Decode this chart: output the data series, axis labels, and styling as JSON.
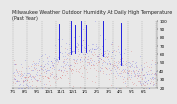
{
  "title": "Milwaukee Weather Outdoor Humidity At Daily High Temperature (Past Year)",
  "title_fontsize": 3.5,
  "title_color": "#222222",
  "bg_color": "#e8e8e8",
  "plot_bg_color": "#e8e8e8",
  "grid_color": "#888888",
  "ylim": [
    20,
    100
  ],
  "yticks": [
    20,
    30,
    40,
    50,
    60,
    70,
    80,
    90,
    100
  ],
  "ylabel_fontsize": 3.0,
  "xlabel_fontsize": 2.8,
  "n_points": 365,
  "blue_color": "#0000dd",
  "red_color": "#cc0000",
  "n_gridlines": 11,
  "seed": 42
}
